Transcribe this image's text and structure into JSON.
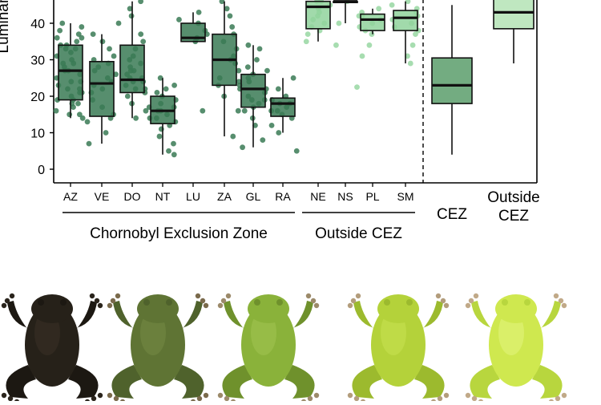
{
  "chart_data": {
    "type": "box",
    "ylabel": "Luminance",
    "yticks": [
      0,
      10,
      20,
      30,
      40
    ],
    "ylim": [
      -3,
      48
    ],
    "grid": false,
    "populations": [
      {
        "label": "AZ",
        "group": "chornobyl",
        "color": "#3a7a55",
        "min": 14,
        "q1": 19,
        "median": 27,
        "q3": 34,
        "max": 40,
        "points": [
          14,
          15,
          16,
          17,
          18,
          19,
          19,
          20,
          21,
          22,
          22,
          23,
          24,
          25,
          26,
          27,
          27,
          28,
          29,
          30,
          31,
          32,
          33,
          34,
          34,
          35,
          36,
          37,
          38,
          39,
          40,
          15,
          18,
          21,
          24,
          29,
          33,
          36
        ]
      },
      {
        "label": "VE",
        "group": "chornobyl",
        "color": "#3a7a55",
        "min": 7,
        "q1": 14.5,
        "median": 23.5,
        "q3": 29.5,
        "max": 37,
        "points": [
          7,
          10,
          13,
          14,
          15,
          17,
          19,
          21,
          22,
          23,
          24,
          25,
          26,
          27,
          28,
          29,
          30,
          31,
          33,
          35,
          37
        ]
      },
      {
        "label": "DO",
        "group": "chornobyl",
        "color": "#3a7a55",
        "min": 14,
        "q1": 21,
        "median": 24.5,
        "q3": 34,
        "max": 46,
        "points": [
          14,
          16,
          18,
          20,
          21,
          22,
          23,
          24,
          24,
          25,
          26,
          27,
          28,
          29,
          30,
          31,
          33,
          35,
          37,
          40,
          42,
          44,
          46,
          22,
          25,
          27
        ]
      },
      {
        "label": "NT",
        "group": "chornobyl",
        "color": "#3a7a55",
        "min": 4,
        "q1": 12.5,
        "median": 16,
        "q3": 20,
        "max": 25,
        "points": [
          4,
          5,
          7,
          9,
          11,
          12,
          13,
          14,
          15,
          16,
          16,
          17,
          18,
          19,
          20,
          21,
          22,
          23,
          25,
          14,
          17
        ]
      },
      {
        "label": "LU",
        "group": "chornobyl",
        "color": "#3a7a55",
        "min": 35,
        "q1": 35,
        "median": 36,
        "q3": 40,
        "max": 43,
        "points": [
          16,
          35,
          36,
          37,
          38,
          40,
          41,
          43
        ]
      },
      {
        "label": "ZA",
        "group": "chornobyl",
        "color": "#3a7a55",
        "min": 9,
        "q1": 23,
        "median": 30,
        "q3": 37,
        "max": 46,
        "points": [
          9,
          16,
          20,
          23,
          25,
          27,
          29,
          30,
          31,
          33,
          35,
          37,
          39,
          42,
          44,
          46
        ]
      },
      {
        "label": "GL",
        "group": "chornobyl",
        "color": "#3a7a55",
        "min": 6,
        "q1": 17,
        "median": 22,
        "q3": 26,
        "max": 34,
        "points": [
          6,
          8,
          12,
          14,
          16,
          17,
          18,
          19,
          20,
          21,
          22,
          22,
          23,
          24,
          25,
          26,
          27,
          28,
          30,
          33,
          34,
          19,
          24
        ]
      },
      {
        "label": "RA",
        "group": "chornobyl",
        "color": "#3a7a55",
        "min": 10,
        "q1": 14.5,
        "median": 18,
        "q3": 19.5,
        "max": 25,
        "points": [
          5,
          10,
          12,
          14,
          15,
          16,
          17,
          18,
          18,
          19,
          20,
          22,
          25,
          16
        ]
      },
      {
        "label": "NE",
        "group": "outside",
        "color": "#91d49c",
        "min": 35,
        "q1": 38.5,
        "median": 44.5,
        "q3": 46,
        "max": 46,
        "points": [
          35,
          37,
          38,
          39,
          40,
          41,
          42,
          43,
          44,
          45,
          46,
          46
        ]
      },
      {
        "label": "NS",
        "group": "outside",
        "color": "#91d49c",
        "min": 40,
        "q1": 46,
        "median": 46,
        "q3": 46,
        "max": 46,
        "points": [
          22.5,
          34,
          40,
          46
        ]
      },
      {
        "label": "PL",
        "group": "outside",
        "color": "#91d49c",
        "min": 37,
        "q1": 38,
        "median": 41,
        "q3": 42.5,
        "max": 44,
        "points": [
          31,
          34,
          37,
          38,
          39,
          40,
          41,
          42,
          42,
          43,
          44
        ]
      },
      {
        "label": "SM",
        "group": "outside",
        "color": "#91d49c",
        "min": 29,
        "q1": 38,
        "median": 41.5,
        "q3": 43.5,
        "max": 46,
        "points": [
          29,
          31,
          34,
          37,
          38,
          39,
          40,
          41,
          42,
          43,
          44,
          45,
          46
        ]
      }
    ],
    "summary": [
      {
        "label": "CEZ",
        "color": "#5a9e6b",
        "min": 4,
        "q1": 18,
        "median": 23,
        "q3": 30.5,
        "max": 45
      },
      {
        "label": "Outside\nCEZ",
        "color": "#b4e3b5",
        "min": 29,
        "q1": 38.5,
        "median": 43,
        "q3": 48,
        "max": 48
      }
    ],
    "groups": [
      {
        "id": "chornobyl",
        "label": "Chornobyl Exclusion Zone"
      },
      {
        "id": "outside",
        "label": "Outside CEZ"
      }
    ]
  },
  "photos": [
    {
      "icon": "frog-photo-dark",
      "body": "#262119",
      "limb": "#1c1812",
      "light": "#3a3227",
      "toe": "#2a241c"
    },
    {
      "icon": "frog-photo-olive",
      "body": "#5f7434",
      "limb": "#4f622c",
      "light": "#748a45",
      "toe": "#7a6a4c"
    },
    {
      "icon": "frog-photo-green",
      "body": "#8ab23a",
      "limb": "#6f912c",
      "light": "#a3c552",
      "toe": "#9c8a6a"
    },
    {
      "icon": "frog-photo-yellowgreen",
      "body": "#b4d23a",
      "limb": "#9cba2e",
      "light": "#c8e152",
      "toe": "#b39d7c"
    },
    {
      "icon": "frog-photo-light",
      "body": "#cfe84f",
      "limb": "#b8d63e",
      "light": "#e4f47f",
      "toe": "#c1a988"
    }
  ]
}
